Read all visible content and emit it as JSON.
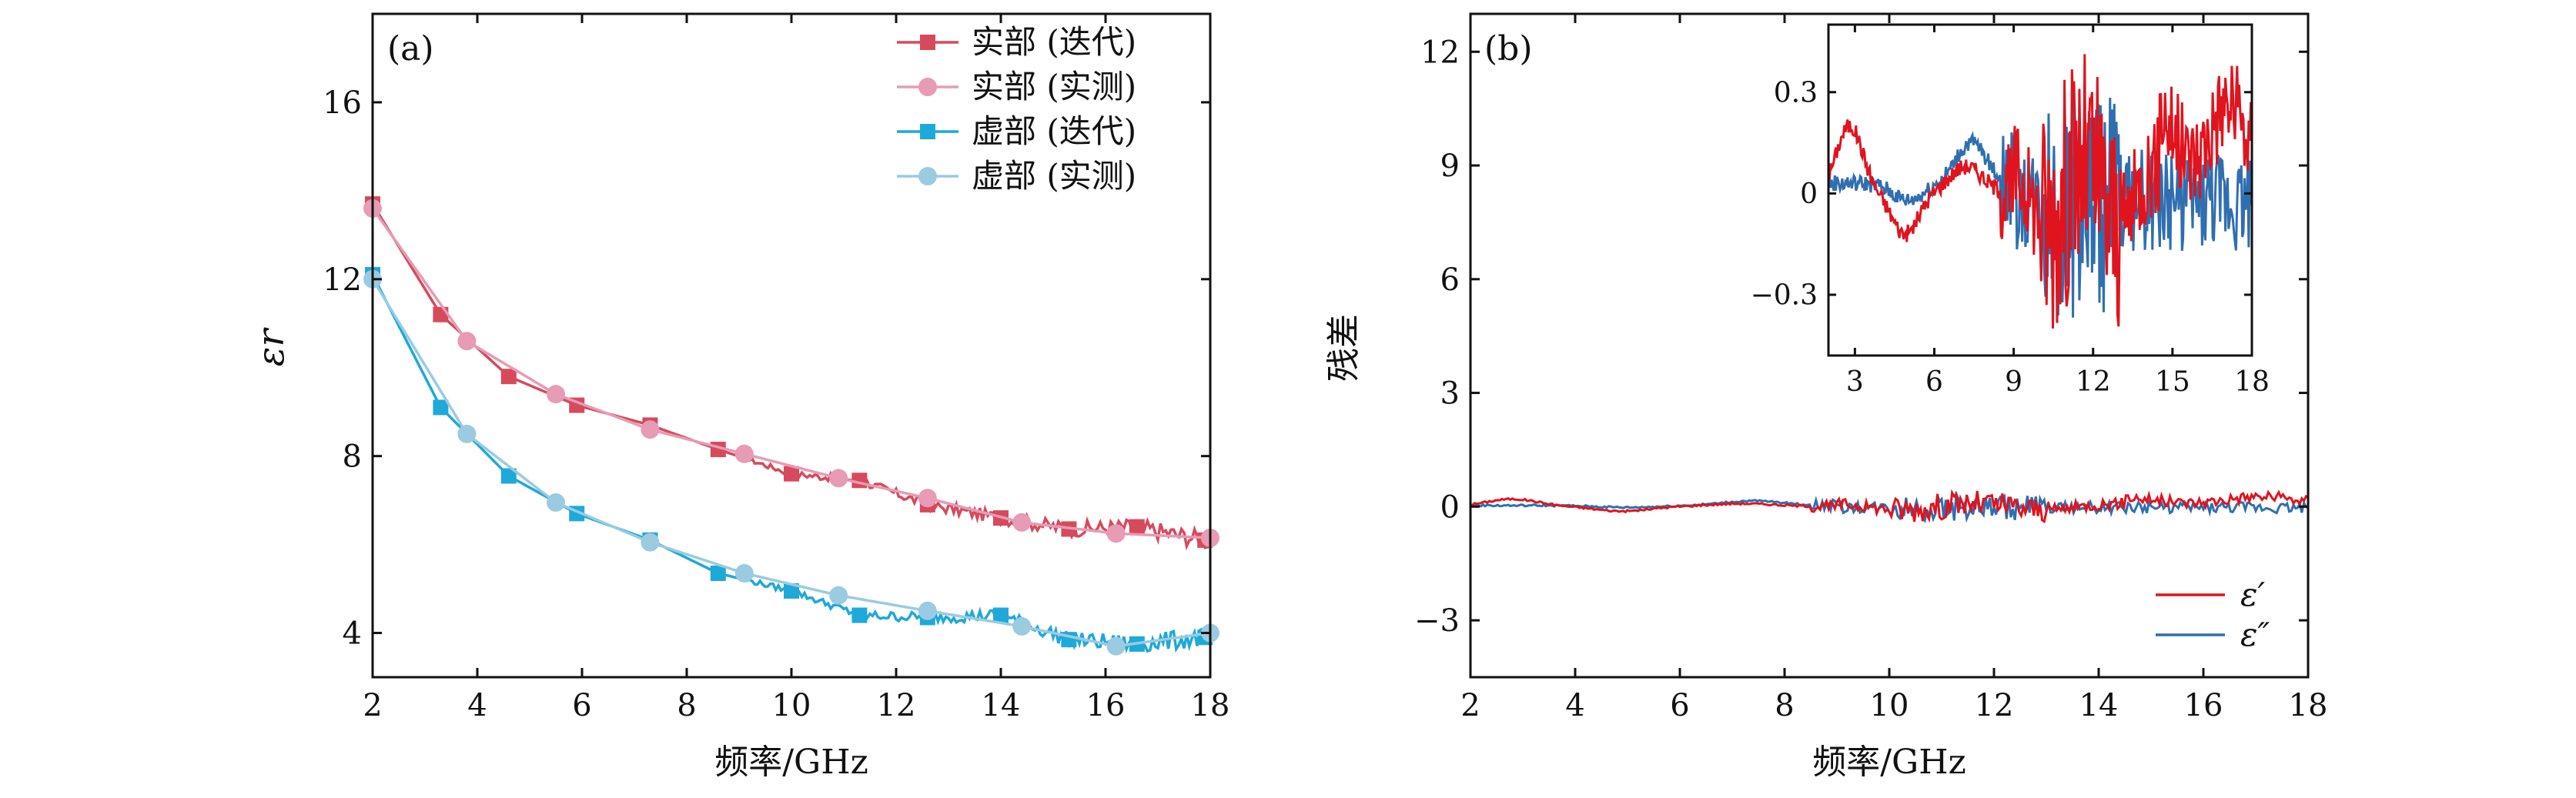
{
  "colors": {
    "real_iter": "#d64a5c",
    "real_meas": "#e79bb5",
    "imag_iter": "#1ea9d9",
    "imag_meas": "#9bcbe0",
    "resid_real": "#e0141e",
    "resid_imag": "#2f6fb0",
    "axis": "#111111"
  },
  "chart_data": [
    {
      "panel_label": "(a)",
      "type": "line",
      "xlabel": "频率/GHz",
      "ylabel": "εr",
      "xlim": [
        2,
        18
      ],
      "ylim": [
        3,
        18
      ],
      "xticks": [
        2,
        4,
        6,
        8,
        10,
        12,
        14,
        16,
        18
      ],
      "yticks": [
        4,
        8,
        12,
        16
      ],
      "legend_position": "top-right",
      "series": [
        {
          "name": "实部 (迭代)",
          "marker": "square",
          "color": "#d64a5c",
          "noisy": true,
          "x": [
            2,
            3.3,
            4.6,
            5.9,
            7.3,
            8.6,
            10.0,
            11.3,
            12.6,
            14.0,
            15.3,
            16.6,
            17.9
          ],
          "y": [
            13.7,
            11.2,
            9.8,
            9.15,
            8.7,
            8.15,
            7.6,
            7.45,
            6.9,
            6.6,
            6.35,
            6.4,
            6.1
          ]
        },
        {
          "name": "实部 (实测)",
          "marker": "circle",
          "color": "#e79bb5",
          "noisy": false,
          "x": [
            2,
            3.8,
            5.5,
            7.3,
            9.1,
            10.9,
            12.6,
            14.4,
            16.2,
            18
          ],
          "y": [
            13.6,
            10.6,
            9.4,
            8.6,
            8.05,
            7.5,
            7.05,
            6.5,
            6.25,
            6.15
          ]
        },
        {
          "name": "虚部 (迭代)",
          "marker": "square",
          "color": "#1ea9d9",
          "noisy": true,
          "x": [
            2,
            3.3,
            4.6,
            5.9,
            7.3,
            8.6,
            10.0,
            11.3,
            12.6,
            14.0,
            15.3,
            16.6,
            17.9
          ],
          "y": [
            12.1,
            9.1,
            7.55,
            6.7,
            6.1,
            5.35,
            4.95,
            4.4,
            4.35,
            4.4,
            3.85,
            3.75,
            3.9
          ]
        },
        {
          "name": "虚部 (实测)",
          "marker": "circle",
          "color": "#9bcbe0",
          "noisy": false,
          "x": [
            2,
            3.8,
            5.5,
            7.3,
            9.1,
            10.9,
            12.6,
            14.4,
            16.2,
            18
          ],
          "y": [
            12.0,
            8.5,
            6.95,
            6.05,
            5.35,
            4.85,
            4.5,
            4.15,
            3.7,
            4.0
          ]
        }
      ]
    },
    {
      "panel_label": "(b)",
      "type": "line",
      "xlabel": "频率/GHz",
      "ylabel": "残差",
      "xlim": [
        2,
        18
      ],
      "ylim": [
        -4.5,
        13
      ],
      "xticks": [
        2,
        4,
        6,
        8,
        10,
        12,
        14,
        16,
        18
      ],
      "yticks": [
        -3,
        0,
        3,
        6,
        9,
        12
      ],
      "legend_position": "bottom-right",
      "series": [
        {
          "name": "ε′",
          "color": "#e0141e"
        },
        {
          "name": "ε″",
          "color": "#2f6fb0"
        }
      ],
      "inset": {
        "xlim": [
          2,
          18
        ],
        "ylim": [
          -0.48,
          0.5
        ],
        "xticks": [
          3,
          6,
          9,
          12,
          15,
          18
        ],
        "yticks": [
          -0.3,
          0,
          0.3
        ],
        "ytick_labels": [
          "−0.3",
          "0",
          "0.3"
        ]
      }
    }
  ]
}
